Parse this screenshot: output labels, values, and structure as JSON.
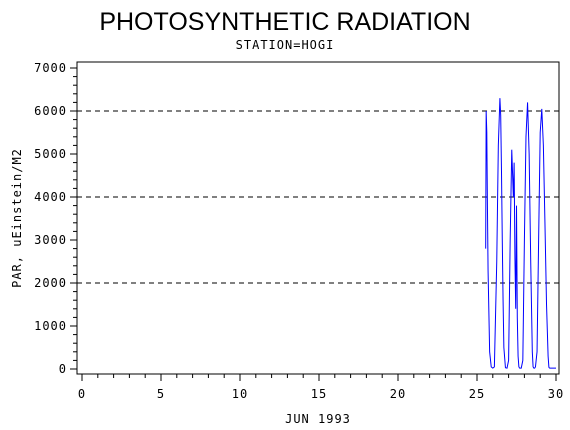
{
  "chart_data": {
    "type": "line",
    "title": "PHOTOSYNTHETIC RADIATION",
    "subtitle": "STATION=HOGI",
    "xlabel": "JUN 1993",
    "ylabel": "PAR, uEinstein/M2",
    "xlim": [
      0,
      30
    ],
    "ylim": [
      0,
      7000
    ],
    "x_ticks": [
      0,
      5,
      10,
      15,
      20,
      25,
      30
    ],
    "y_ticks": [
      0,
      1000,
      2000,
      3000,
      4000,
      5000,
      6000,
      7000
    ],
    "y_gridlines": [
      2000,
      4000,
      6000
    ],
    "grid": "dashed horizontal lines at 2000, 4000, 6000",
    "legend": "none",
    "line_color": "#0000ff",
    "series": [
      {
        "x": [
          25.55,
          25.58,
          25.62,
          25.66,
          25.7,
          25.8,
          25.9,
          26.0,
          26.1,
          26.25,
          26.35,
          26.45,
          26.5,
          26.55,
          26.6,
          26.65,
          26.7,
          26.8,
          26.9,
          27.0,
          27.1,
          27.2,
          27.3,
          27.35,
          27.4,
          27.45,
          27.5,
          27.55,
          27.6,
          27.65,
          27.7,
          27.8,
          27.9,
          28.0,
          28.1,
          28.2,
          28.3,
          28.4,
          28.5,
          28.55,
          28.6,
          28.65,
          28.7,
          28.8,
          28.9,
          29.0,
          29.1,
          29.2,
          29.3,
          29.4,
          29.5,
          29.55,
          29.6,
          29.65,
          29.7,
          29.8,
          29.9,
          30.0
        ],
        "y": [
          2800,
          6000,
          5500,
          3800,
          2300,
          400,
          50,
          20,
          50,
          2500,
          5200,
          6300,
          5900,
          4600,
          3000,
          1600,
          500,
          30,
          20,
          200,
          3000,
          5100,
          4000,
          4800,
          2600,
          1400,
          3800,
          1200,
          300,
          50,
          20,
          20,
          200,
          3000,
          5400,
          6200,
          5000,
          2500,
          400,
          50,
          20,
          20,
          50,
          400,
          3000,
          5500,
          6050,
          5200,
          3400,
          1500,
          300,
          40,
          20,
          20,
          20,
          20,
          20,
          20
        ]
      }
    ]
  }
}
